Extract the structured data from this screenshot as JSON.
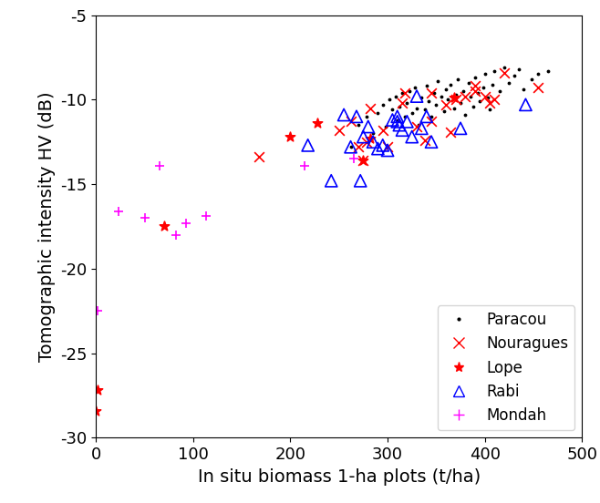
{
  "chart_data": {
    "type": "scatter",
    "x_label": "In situ biomass 1-ha plots (t/ha)",
    "y_label": "Tomographic intensity HV (dB)",
    "xlim": [
      0,
      500
    ],
    "xticks": [
      0,
      100,
      200,
      300,
      400,
      500
    ],
    "ylim": [
      -30,
      -5
    ],
    "yticks": [
      -30,
      -25,
      -20,
      -15,
      -10,
      -5
    ],
    "grid": false,
    "legend": "lower right",
    "series": [
      {
        "name": "Paracou",
        "color": "#000000",
        "marker": "point",
        "x": [
          262,
          270,
          278,
          285,
          290,
          295,
          298,
          302,
          305,
          308,
          310,
          312,
          315,
          318,
          320,
          322,
          325,
          328,
          330,
          332,
          335,
          338,
          340,
          342,
          345,
          348,
          350,
          352,
          355,
          358,
          360,
          362,
          365,
          368,
          370,
          372,
          375,
          378,
          380,
          383,
          385,
          388,
          390,
          393,
          395,
          398,
          400,
          403,
          405,
          408,
          410,
          415,
          420,
          425,
          430,
          435,
          440,
          448,
          455,
          465
        ],
        "y": [
          -12.8,
          -11.5,
          -11.0,
          -12.0,
          -10.8,
          -10.3,
          -11.6,
          -10.0,
          -10.6,
          -9.8,
          -11.2,
          -10.4,
          -9.6,
          -11.0,
          -10.2,
          -9.5,
          -10.8,
          -9.3,
          -10.5,
          -11.5,
          -9.9,
          -10.6,
          -9.2,
          -10.1,
          -11.0,
          -9.6,
          -10.3,
          -8.9,
          -9.8,
          -10.7,
          -9.4,
          -10.0,
          -9.1,
          -10.5,
          -9.7,
          -8.8,
          -10.2,
          -9.5,
          -10.9,
          -9.0,
          -9.8,
          -10.4,
          -8.7,
          -9.6,
          -10.1,
          -9.3,
          -8.5,
          -9.9,
          -10.6,
          -9.1,
          -8.3,
          -9.5,
          -8.1,
          -9.0,
          -8.6,
          -8.2,
          -9.4,
          -8.8,
          -8.5,
          -8.3
        ]
      },
      {
        "name": "Nouragues",
        "color": "#ff0000",
        "marker": "x",
        "x": [
          168,
          250,
          262,
          270,
          275,
          278,
          282,
          295,
          300,
          315,
          318,
          330,
          338,
          345,
          345,
          360,
          365,
          370,
          380,
          390,
          390,
          400,
          405,
          410,
          420,
          455
        ],
        "y": [
          -13.4,
          -11.8,
          -11.3,
          -12.8,
          -13.6,
          -12.5,
          -10.5,
          -11.8,
          -12.8,
          -10.2,
          -9.6,
          -11.6,
          -12.4,
          -11.3,
          -9.6,
          -10.3,
          -11.9,
          -10.0,
          -9.8,
          -9.5,
          -9.2,
          -9.8,
          -10.2,
          -10.0,
          -8.4,
          -9.3
        ]
      },
      {
        "name": "Lope",
        "color": "#ff0000",
        "marker": "star",
        "x": [
          0,
          2,
          70,
          200,
          228,
          275,
          282,
          368
        ],
        "y": [
          -28.4,
          -27.2,
          -17.5,
          -12.2,
          -11.4,
          -13.6,
          -12.3,
          -9.9
        ]
      },
      {
        "name": "Rabi",
        "color": "#0000ff",
        "marker": "triangle",
        "x": [
          218,
          242,
          255,
          262,
          268,
          272,
          275,
          280,
          285,
          290,
          295,
          300,
          305,
          310,
          310,
          312,
          315,
          320,
          325,
          330,
          335,
          340,
          345,
          375,
          442
        ],
        "y": [
          -12.7,
          -14.8,
          -10.9,
          -12.8,
          -11.0,
          -14.8,
          -12.2,
          -11.6,
          -12.5,
          -12.9,
          -12.7,
          -13.0,
          -11.2,
          -11.3,
          -11.0,
          -11.5,
          -11.8,
          -11.3,
          -12.2,
          -9.8,
          -11.7,
          -11.0,
          -12.5,
          -11.7,
          -10.3
        ]
      },
      {
        "name": "Mondah",
        "color": "#ff00ff",
        "marker": "plus",
        "x": [
          2,
          23,
          50,
          65,
          82,
          93,
          113,
          215,
          265
        ],
        "y": [
          -22.5,
          -16.6,
          -17.0,
          -13.9,
          -18.0,
          -17.3,
          -16.9,
          -13.9,
          -13.5
        ]
      }
    ]
  }
}
